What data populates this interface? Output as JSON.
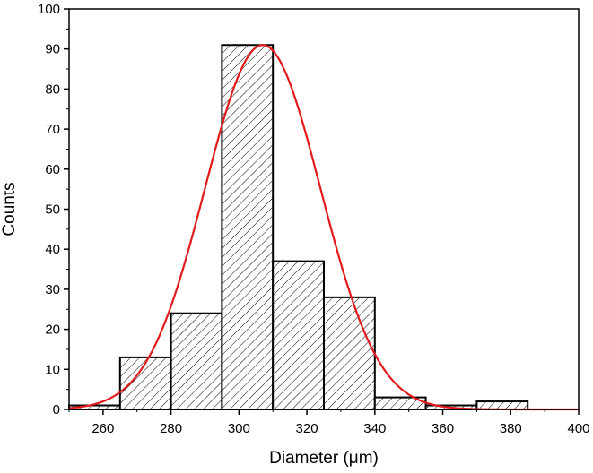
{
  "chart_data": {
    "type": "bar",
    "subtype": "histogram-with-gaussian-fit",
    "xlabel": "Diameter (μm)",
    "ylabel": "Counts",
    "xlim": [
      250,
      400
    ],
    "ylim": [
      0,
      100
    ],
    "xticks": [
      260,
      280,
      300,
      320,
      340,
      360,
      380,
      400
    ],
    "yticks": [
      0,
      10,
      20,
      30,
      40,
      50,
      60,
      70,
      80,
      90,
      100
    ],
    "bin_width": 15,
    "bins": [
      {
        "start": 250,
        "end": 265,
        "count": 1
      },
      {
        "start": 265,
        "end": 280,
        "count": 13
      },
      {
        "start": 280,
        "end": 295,
        "count": 24
      },
      {
        "start": 295,
        "end": 310,
        "count": 91
      },
      {
        "start": 310,
        "end": 325,
        "count": 37
      },
      {
        "start": 325,
        "end": 340,
        "count": 28
      },
      {
        "start": 340,
        "end": 355,
        "count": 3
      },
      {
        "start": 355,
        "end": 370,
        "count": 1
      },
      {
        "start": 370,
        "end": 385,
        "count": 2
      }
    ],
    "fit": {
      "kind": "gaussian",
      "mean": 307,
      "sigma": 17,
      "amplitude": 91,
      "color": "#e31a1c"
    },
    "bar_fill": "diagonal-hatch",
    "bar_edge_color": "#000000",
    "grid": false,
    "legend": "none"
  }
}
